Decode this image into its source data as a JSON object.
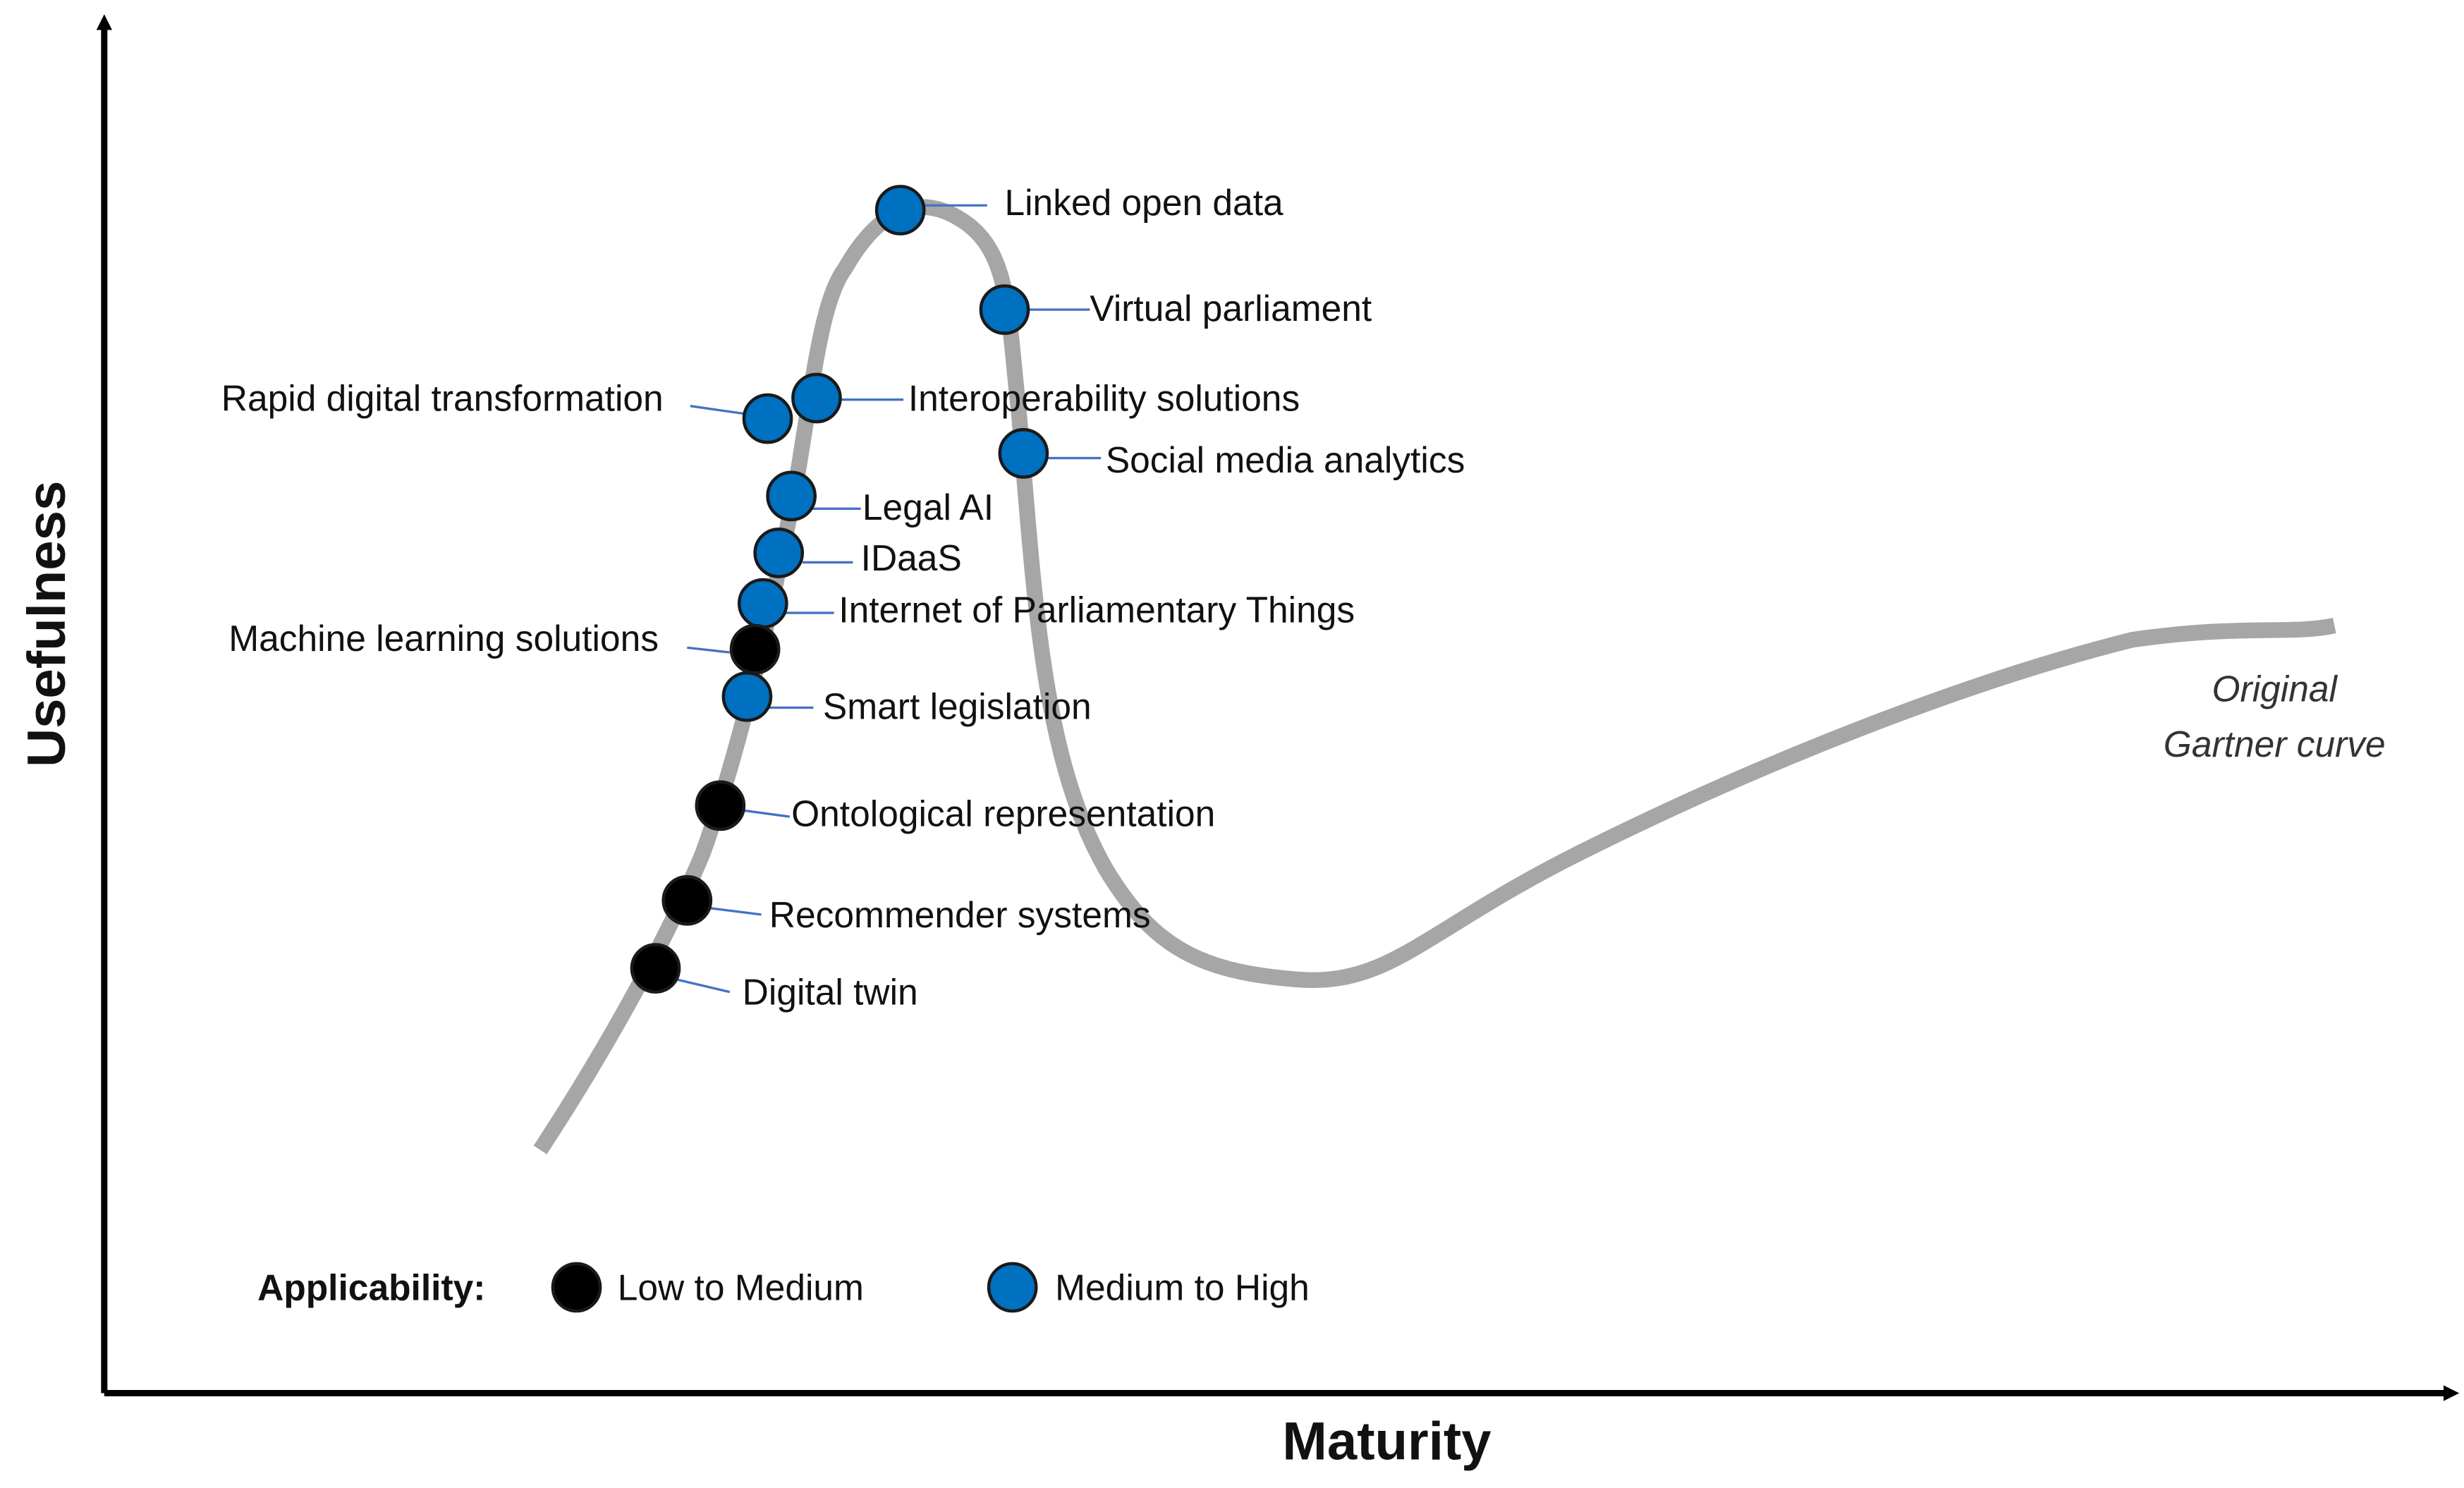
{
  "axes": {
    "y_label": "Usefulness",
    "x_label": "Maturity"
  },
  "curve_label": [
    "Original",
    "Gartner curve"
  ],
  "legend": {
    "title": "Applicability:",
    "items": [
      {
        "label": "Low to Medium",
        "color": "#000000"
      },
      {
        "label": "Medium to High",
        "color": "#0070c0"
      }
    ]
  },
  "nodes": [
    {
      "label": "Linked open data",
      "color": "#0070c0"
    },
    {
      "label": "Virtual parliament",
      "color": "#0070c0"
    },
    {
      "label": "Interoperability solutions",
      "color": "#0070c0"
    },
    {
      "label": "Rapid digital transformation",
      "color": "#0070c0"
    },
    {
      "label": "Social media analytics",
      "color": "#0070c0"
    },
    {
      "label": "Legal AI",
      "color": "#0070c0"
    },
    {
      "label": "IDaaS",
      "color": "#0070c0"
    },
    {
      "label": "Internet of Parliamentary Things",
      "color": "#0070c0"
    },
    {
      "label": "Machine learning solutions",
      "color": "#000000"
    },
    {
      "label": "Smart legislation",
      "color": "#0070c0"
    },
    {
      "label": "Ontological representation",
      "color": "#000000"
    },
    {
      "label": "Recommender systems",
      "color": "#000000"
    },
    {
      "label": "Digital twin",
      "color": "#000000"
    }
  ]
}
